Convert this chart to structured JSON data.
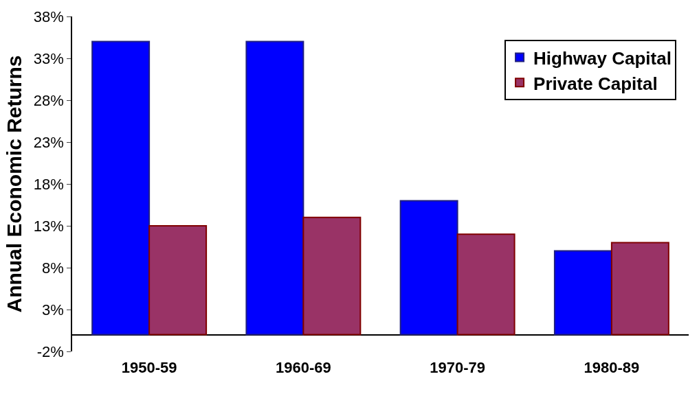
{
  "chart_data": {
    "type": "bar",
    "ylabel": "Annual Economic Returns",
    "categories": [
      "1950-59",
      "1960-69",
      "1970-79",
      "1980-89"
    ],
    "series": [
      {
        "name": "Highway Capital",
        "color": "#0000ff",
        "values": [
          35,
          35,
          16,
          10
        ]
      },
      {
        "name": "Private Capital",
        "color": "#993366",
        "values": [
          13,
          14,
          12,
          11
        ]
      }
    ],
    "ylim": [
      -2,
      38
    ],
    "yticks": [
      {
        "value": -2,
        "label": "-2%"
      },
      {
        "value": 3,
        "label": "3%"
      },
      {
        "value": 8,
        "label": "8%"
      },
      {
        "value": 13,
        "label": "13%"
      },
      {
        "value": 18,
        "label": "18%"
      },
      {
        "value": 23,
        "label": "23%"
      },
      {
        "value": 28,
        "label": "28%"
      },
      {
        "value": 33,
        "label": "33%"
      },
      {
        "value": 38,
        "label": "38%"
      }
    ],
    "grid": false,
    "legend": "top right"
  }
}
